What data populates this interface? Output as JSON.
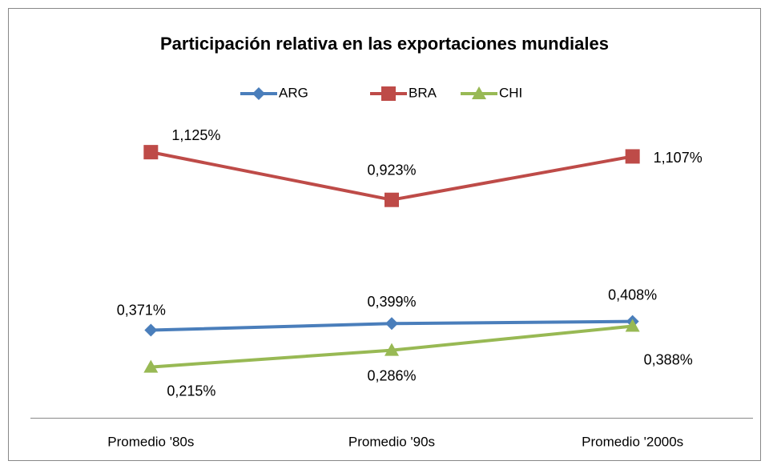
{
  "chart_data": {
    "type": "line",
    "title": "Participación relativa en las exportaciones mundiales",
    "categories": [
      "Promedio '80s",
      "Promedio '90s",
      "Promedio '2000s"
    ],
    "series": [
      {
        "name": "ARG",
        "color": "#4a7ebb",
        "values": [
          0.371,
          0.399,
          0.408
        ],
        "value_labels": [
          "0,371%",
          "0,399%",
          "0,408%"
        ]
      },
      {
        "name": "BRA",
        "color": "#be4b48",
        "values": [
          1.125,
          0.923,
          1.107
        ],
        "value_labels": [
          "1,125%",
          "0,923%",
          "1,107%"
        ]
      },
      {
        "name": "CHI",
        "color": "#98b954",
        "values": [
          0.215,
          0.286,
          0.388
        ],
        "value_labels": [
          "0,215%",
          "0,286%",
          "0,388%"
        ]
      }
    ],
    "ylim": [
      0,
      1.2
    ],
    "legend": "top"
  }
}
